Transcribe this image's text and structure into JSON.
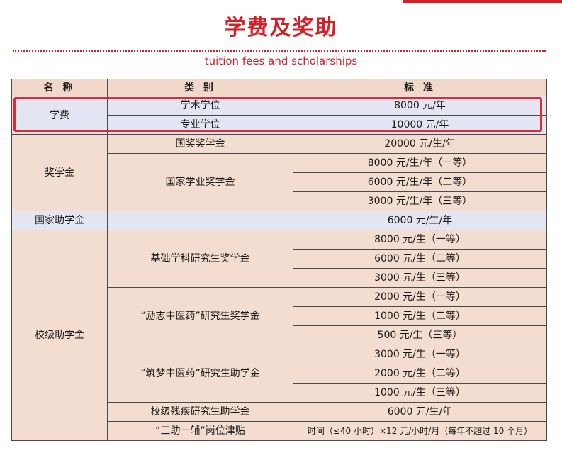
{
  "header": {
    "title": "学费及奖助",
    "subtitle": "tuition fees and scholarships"
  },
  "table": {
    "headers": [
      "名 称",
      "类 别",
      "标 准"
    ],
    "tuition": {
      "name": "学费",
      "rows": [
        {
          "category": "学术学位",
          "standard": "8000 元/年"
        },
        {
          "category": "专业学位",
          "standard": "10000 元/年"
        }
      ]
    },
    "scholarship": {
      "name": "奖学金",
      "national": {
        "category": "国奖奖学金",
        "standard": "20000 元/生/年"
      },
      "academic": {
        "category": "国家学业奖学金",
        "standards": [
          "8000 元/生/年（一等）",
          "6000 元/生/年（二等）",
          "3000 元/生/年（三等）"
        ]
      }
    },
    "grant": {
      "name": "国家助学金",
      "category": "",
      "standard": "6000 元/生/年"
    },
    "school": {
      "name": "校级助学金",
      "basic": {
        "category": "基础学科研究生奖学金",
        "standards": [
          "8000 元/生（一等）",
          "6000 元/生（二等）",
          "3000 元/生（三等）"
        ]
      },
      "lizhi": {
        "category": "“励志中医药”研究生奖学金",
        "standards": [
          "2000 元/生（一等）",
          "1000 元/生（二等）",
          "500 元/生（三等）"
        ]
      },
      "zhumeng": {
        "category": "“筑梦中医药”研究生助学金",
        "standards": [
          "3000 元/生（一等）",
          "2000 元/生（二等）",
          "1000 元/生（三等）"
        ]
      },
      "disabled": {
        "category": "校级残疾研究生助学金",
        "standard": "6000 元/生/年"
      },
      "assist": {
        "category": "“三助一辅”岗位津贴",
        "standard": "时间（≤40 小时）×12 元/小时/月（每年不超过 10 个月）"
      }
    }
  },
  "colors": {
    "accent": "#d32027",
    "header_bg": "#f2d7cb",
    "row_bg": "#f3dcd0",
    "blue_bg": "#e3e6f2"
  }
}
